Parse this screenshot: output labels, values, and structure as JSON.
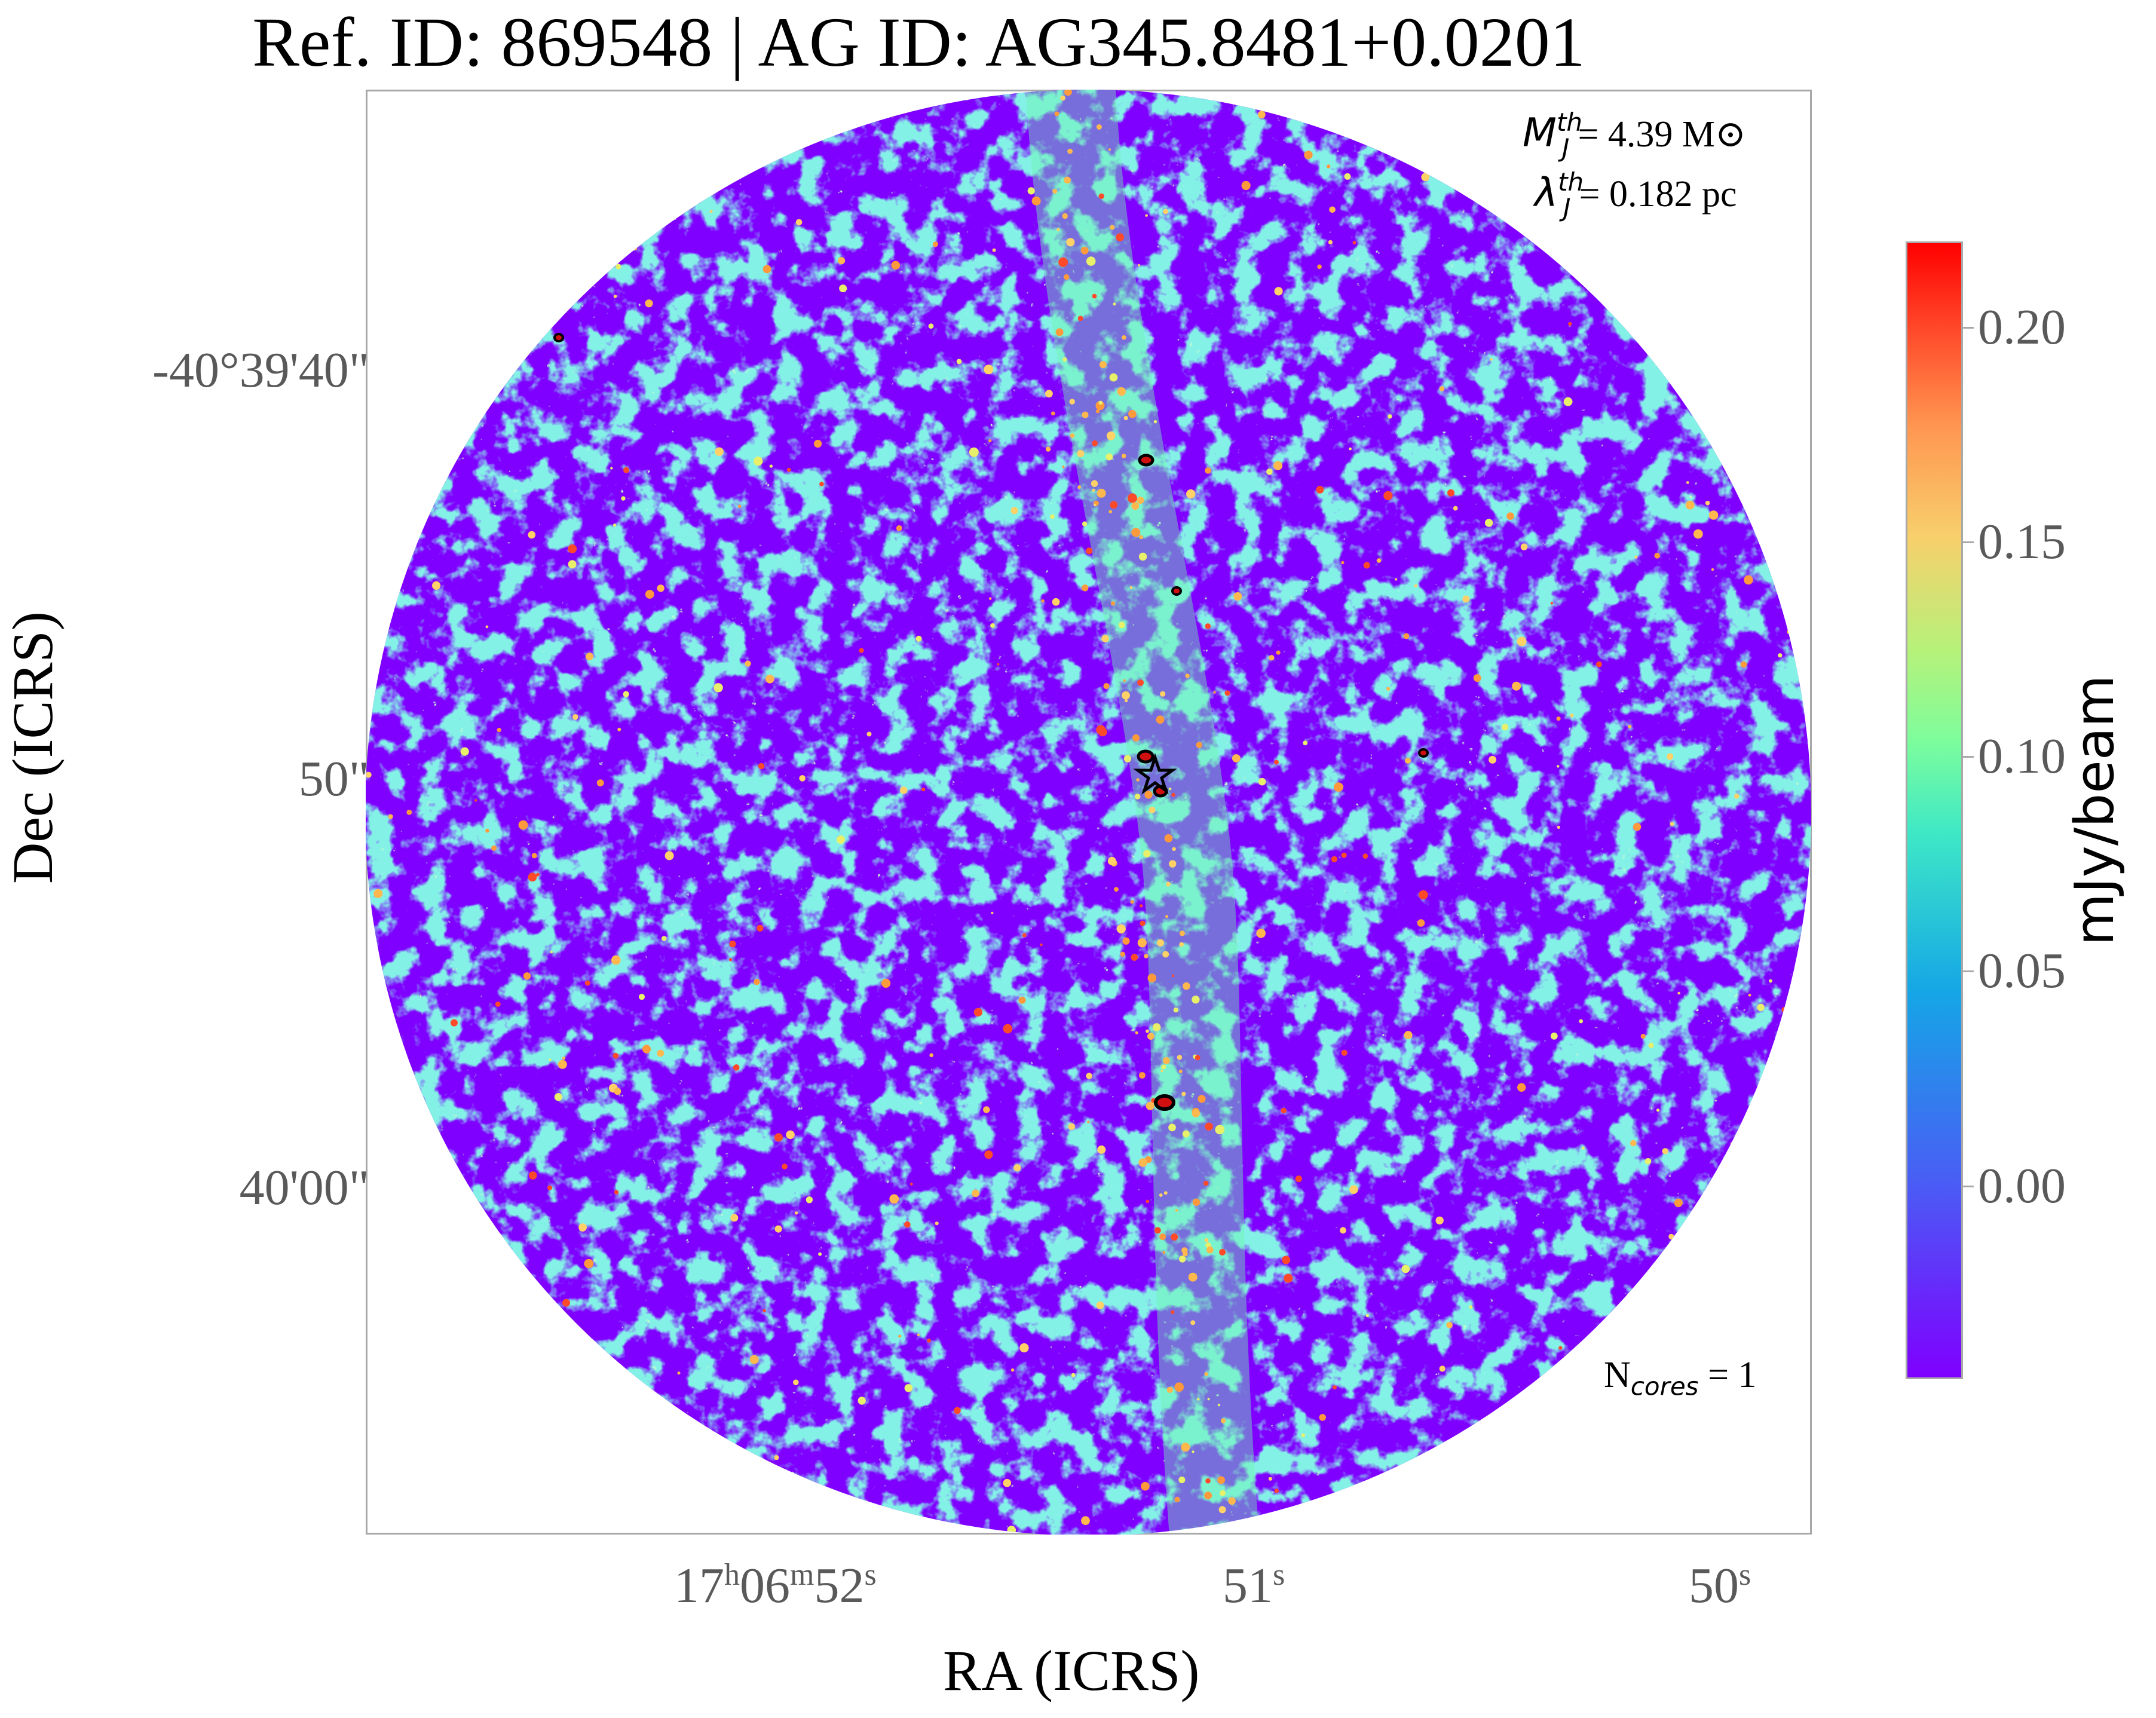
{
  "title": "Ref. ID: 869548 | AG ID: AG345.8481+0.0201",
  "annotations": {
    "mass_symbol": "M",
    "mass_sup": "th",
    "mass_sub": "J",
    "mass_value": "= 4.39 M⊙",
    "length_symbol": "λ",
    "length_sup": "th",
    "length_sub": "J",
    "length_value": "= 0.182 pc",
    "ncores_base": "N",
    "ncores_sub": "cores",
    "ncores_value": " = 1"
  },
  "chart_data": {
    "type": "heatmap",
    "title": "Ref. ID: 869548 | AG ID: AG345.8481+0.0201",
    "xlabel": "RA (ICRS)",
    "ylabel": "Dec (ICRS)",
    "x_ticks": [
      {
        "h": "17",
        "h_unit": "h",
        "m": "06",
        "m_unit": "m",
        "s": "52",
        "s_unit": "s"
      },
      {
        "s": "51",
        "s_unit": "s"
      },
      {
        "s": "50",
        "s_unit": "s"
      }
    ],
    "y_ticks": [
      "-40°39'40\"",
      "50\"",
      "40'00\""
    ],
    "colorbar": {
      "label": "mJy/beam",
      "ticks": [
        "0.20",
        "0.15",
        "0.10",
        "0.05",
        "0.00"
      ],
      "tick_values": [
        0.2,
        0.15,
        0.1,
        0.05,
        0.0
      ],
      "range": [
        -0.045,
        0.22
      ],
      "colormap": "rainbow"
    },
    "colors": {
      "low": "#7f00ff",
      "mid_low": "#15a6e6",
      "mid": "#7cfd9d",
      "mid_high": "#f7d06c",
      "high": "#ff0000",
      "contour": "#000000"
    },
    "cores_marked": 1,
    "marker": "star"
  }
}
